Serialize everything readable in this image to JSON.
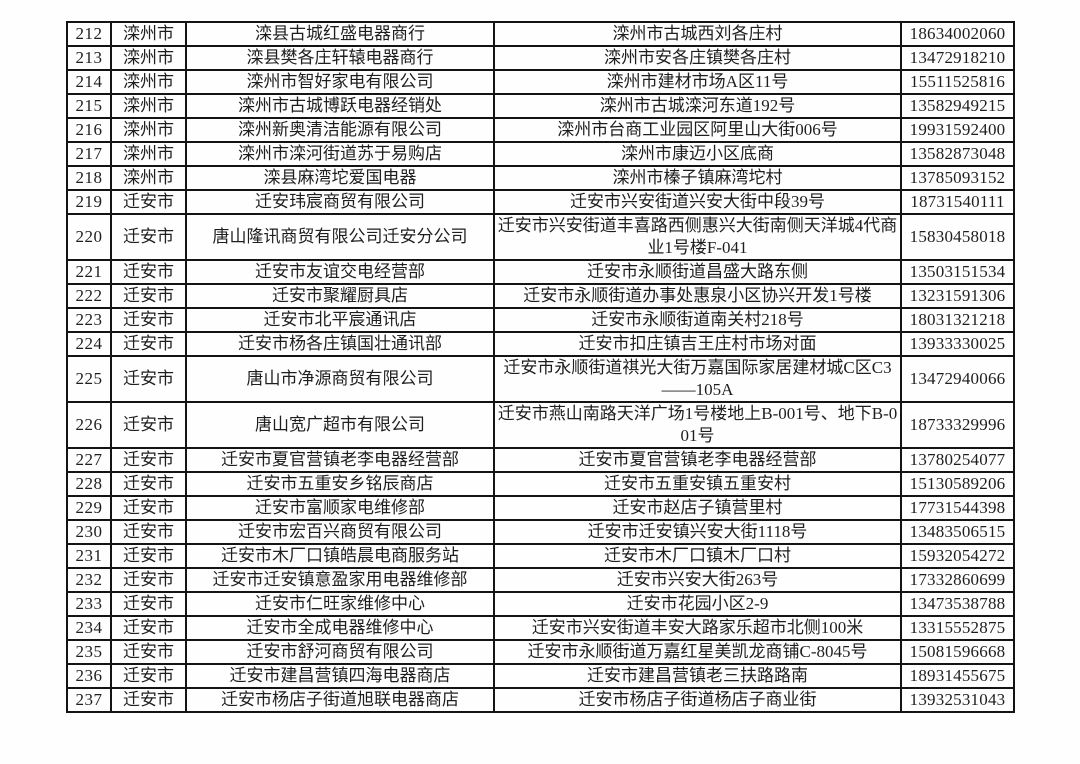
{
  "table": {
    "description_colors": {
      "border": "#141414",
      "text": "#1e1e1e",
      "background": "#fefefe"
    },
    "rows": [
      {
        "no": "212",
        "city": "滦州市",
        "name": "滦县古城红盛电器商行",
        "address": "滦州市古城西刘各庄村",
        "phone": "18634002060"
      },
      {
        "no": "213",
        "city": "滦州市",
        "name": "滦县樊各庄轩辕电器商行",
        "address": "滦州市安各庄镇樊各庄村",
        "phone": "13472918210"
      },
      {
        "no": "214",
        "city": "滦州市",
        "name": "滦州市智好家电有限公司",
        "address": "滦州市建材市场A区11号",
        "phone": "15511525816"
      },
      {
        "no": "215",
        "city": "滦州市",
        "name": "滦州市古城博跃电器经销处",
        "address": "滦州市古城滦河东道192号",
        "phone": "13582949215"
      },
      {
        "no": "216",
        "city": "滦州市",
        "name": "滦州新奥清洁能源有限公司",
        "address": "滦州市台商工业园区阿里山大街006号",
        "phone": "19931592400"
      },
      {
        "no": "217",
        "city": "滦州市",
        "name": "滦州市滦河街道苏于易购店",
        "address": "滦州市康迈小区底商",
        "phone": "13582873048"
      },
      {
        "no": "218",
        "city": "滦州市",
        "name": "滦县麻湾坨爱国电器",
        "address": "滦州市榛子镇麻湾坨村",
        "phone": "13785093152"
      },
      {
        "no": "219",
        "city": "迁安市",
        "name": "迁安玮宸商贸有限公司",
        "address": "迁安市兴安街道兴安大街中段39号",
        "phone": "18731540111"
      },
      {
        "no": "220",
        "city": "迁安市",
        "name": "唐山隆讯商贸有限公司迁安分公司",
        "address": "迁安市兴安街道丰喜路西侧惠兴大街南侧天洋城4代商业1号楼F-041",
        "phone": "15830458018"
      },
      {
        "no": "221",
        "city": "迁安市",
        "name": "迁安市友谊交电经营部",
        "address": "迁安市永顺街道昌盛大路东侧",
        "phone": "13503151534"
      },
      {
        "no": "222",
        "city": "迁安市",
        "name": "迁安市聚耀厨具店",
        "address": "迁安市永顺街道办事处惠泉小区协兴开发1号楼",
        "phone": "13231591306"
      },
      {
        "no": "223",
        "city": "迁安市",
        "name": "迁安市北平宸通讯店",
        "address": "迁安市永顺街道南关村218号",
        "phone": "18031321218"
      },
      {
        "no": "224",
        "city": "迁安市",
        "name": "迁安市杨各庄镇国壮通讯部",
        "address": "迁安市扣庄镇吉王庄村市场对面",
        "phone": "13933330025"
      },
      {
        "no": "225",
        "city": "迁安市",
        "name": "唐山市净源商贸有限公司",
        "address": "迁安市永顺街道祺光大街万嘉国际家居建材城C区C3——105A",
        "phone": "13472940066"
      },
      {
        "no": "226",
        "city": "迁安市",
        "name": "唐山宽广超市有限公司",
        "address": "迁安市燕山南路天洋广场1号楼地上B-001号、地下B-001号",
        "phone": "18733329996"
      },
      {
        "no": "227",
        "city": "迁安市",
        "name": "迁安市夏官营镇老李电器经营部",
        "address": "迁安市夏官营镇老李电器经营部",
        "phone": "13780254077"
      },
      {
        "no": "228",
        "city": "迁安市",
        "name": "迁安市五重安乡铭辰商店",
        "address": "迁安市五重安镇五重安村",
        "phone": "15130589206"
      },
      {
        "no": "229",
        "city": "迁安市",
        "name": "迁安市富顺家电维修部",
        "address": "迁安市赵店子镇营里村",
        "phone": "17731544398"
      },
      {
        "no": "230",
        "city": "迁安市",
        "name": "迁安市宏百兴商贸有限公司",
        "address": "迁安市迁安镇兴安大街1118号",
        "phone": "13483506515"
      },
      {
        "no": "231",
        "city": "迁安市",
        "name": "迁安市木厂口镇皓晨电商服务站",
        "address": "迁安市木厂口镇木厂口村",
        "phone": "15932054272"
      },
      {
        "no": "232",
        "city": "迁安市",
        "name": "迁安市迁安镇意盈家用电器维修部",
        "address": "迁安市兴安大街263号",
        "phone": "17332860699"
      },
      {
        "no": "233",
        "city": "迁安市",
        "name": "迁安市仁旺家维修中心",
        "address": "迁安市花园小区2-9",
        "phone": "13473538788"
      },
      {
        "no": "234",
        "city": "迁安市",
        "name": "迁安市全成电器维修中心",
        "address": "迁安市兴安街道丰安大路家乐超市北侧100米",
        "phone": "13315552875"
      },
      {
        "no": "235",
        "city": "迁安市",
        "name": "迁安市舒河商贸有限公司",
        "address": "迁安市永顺街道万嘉红星美凯龙商铺C-8045号",
        "phone": "15081596668"
      },
      {
        "no": "236",
        "city": "迁安市",
        "name": "迁安市建昌营镇四海电器商店",
        "address": "迁安市建昌营镇老三扶路路南",
        "phone": "18931455675"
      },
      {
        "no": "237",
        "city": "迁安市",
        "name": "迁安市杨店子街道旭联电器商店",
        "address": "迁安市杨店子街道杨店子商业街",
        "phone": "13932531043"
      }
    ]
  }
}
